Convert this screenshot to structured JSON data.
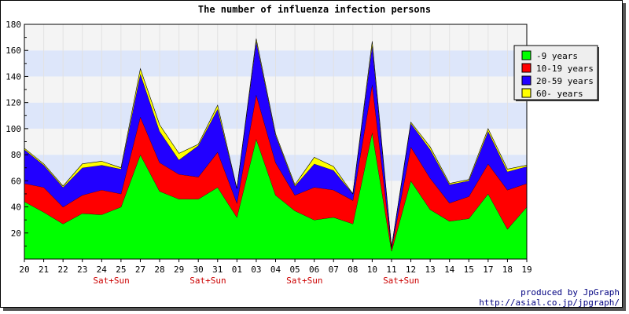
{
  "chart_data": {
    "type": "area",
    "stacked": true,
    "title": "The number of influenza infection persons",
    "xlabel": "",
    "ylabel": "",
    "ylim": [
      0,
      180
    ],
    "yticks": [
      20,
      40,
      60,
      80,
      100,
      120,
      140,
      160,
      180
    ],
    "categories": [
      "20",
      "21",
      "22",
      "23",
      "24",
      "25",
      "27",
      "28",
      "29",
      "30",
      "31",
      "01",
      "03",
      "04",
      "05",
      "06",
      "07",
      "08",
      "10",
      "11",
      "12",
      "13",
      "14",
      "15",
      "17",
      "18",
      "19"
    ],
    "weekend_markers": [
      {
        "category": "24",
        "label": "Sat+Sun"
      },
      {
        "category": "30",
        "label": "Sat+Sun"
      },
      {
        "category": "05",
        "label": "Sat+Sun"
      },
      {
        "category": "11",
        "label": "Sat+Sun"
      }
    ],
    "series": [
      {
        "name": "-9 years",
        "color": "#00ff00",
        "values": [
          44,
          36,
          27,
          35,
          34,
          40,
          80,
          52,
          46,
          46,
          55,
          32,
          92,
          49,
          37,
          30,
          32,
          27,
          97,
          6,
          60,
          38,
          29,
          31,
          50,
          23,
          40
        ]
      },
      {
        "name": "10-19 years",
        "color": "#ff0000",
        "values": [
          14,
          19,
          13,
          14,
          19,
          10,
          29,
          22,
          19,
          17,
          27,
          11,
          34,
          25,
          12,
          25,
          21,
          18,
          37,
          2,
          26,
          24,
          14,
          17,
          23,
          30,
          18
        ]
      },
      {
        "name": "20-59 years",
        "color": "#2200ff",
        "values": [
          26,
          17,
          15,
          21,
          19,
          19,
          33,
          24,
          11,
          24,
          33,
          11,
          41,
          21,
          7,
          18,
          15,
          5,
          30,
          1,
          18,
          22,
          14,
          12,
          25,
          14,
          13
        ]
      },
      {
        "name": "60- years",
        "color": "#ffff00",
        "values": [
          1,
          1,
          1,
          3,
          3,
          1,
          4,
          5,
          5,
          1,
          3,
          0,
          2,
          1,
          1,
          5,
          3,
          0,
          3,
          0,
          1,
          2,
          1,
          1,
          2,
          2,
          1
        ]
      }
    ],
    "grid": true,
    "legend_position": "top-right"
  },
  "credits": {
    "line1": "produced by JpGraph",
    "line2": "http://asial.co.jp/jpgraph/"
  }
}
